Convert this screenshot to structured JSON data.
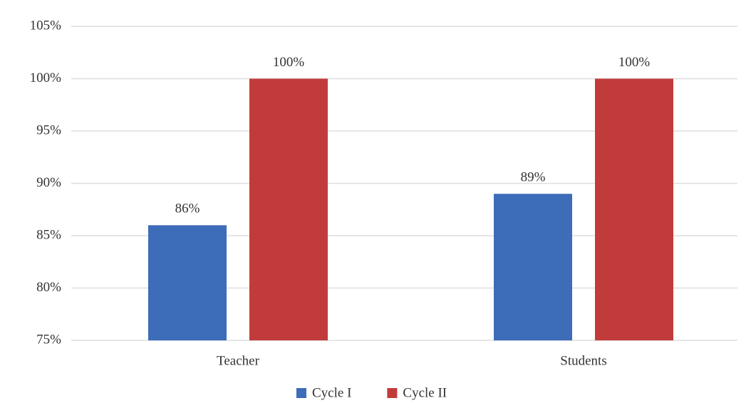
{
  "chart_data": {
    "type": "bar",
    "categories": [
      "Teacher",
      "Students"
    ],
    "series": [
      {
        "name": "Cycle I",
        "color": "#3d6cb8",
        "values": [
          86,
          89
        ],
        "value_labels": [
          "86%",
          "89%"
        ]
      },
      {
        "name": "Cycle II",
        "color": "#c23b3b",
        "values": [
          100,
          100
        ],
        "value_labels": [
          "100%",
          "100%"
        ]
      }
    ],
    "ylim": [
      75,
      105
    ],
    "yticks": [
      {
        "value": 75,
        "label": "75%"
      },
      {
        "value": 80,
        "label": "80%"
      },
      {
        "value": 85,
        "label": "85%"
      },
      {
        "value": 90,
        "label": "90%"
      },
      {
        "value": 95,
        "label": "95%"
      },
      {
        "value": 100,
        "label": "100%"
      },
      {
        "value": 105,
        "label": "105%"
      }
    ],
    "grid": true,
    "legend": "bottom"
  }
}
